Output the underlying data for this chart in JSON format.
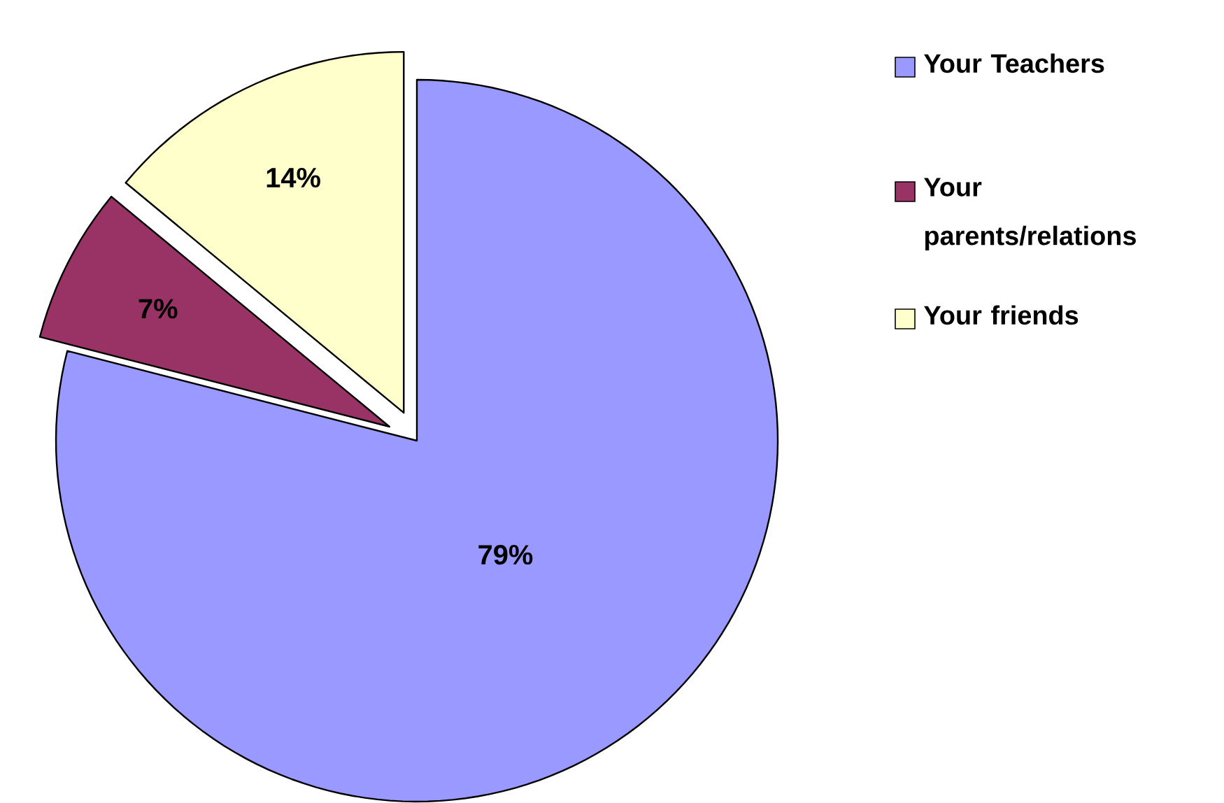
{
  "chart_data": {
    "type": "pie",
    "categories": [
      "Your Teachers",
      "Your parents/relations",
      "Your friends"
    ],
    "values": [
      79,
      7,
      14
    ],
    "colors": [
      "#9999ff",
      "#993366",
      "#ffffcc"
    ],
    "value_labels": [
      "79%",
      "7%",
      "14%"
    ],
    "legend": "right"
  }
}
